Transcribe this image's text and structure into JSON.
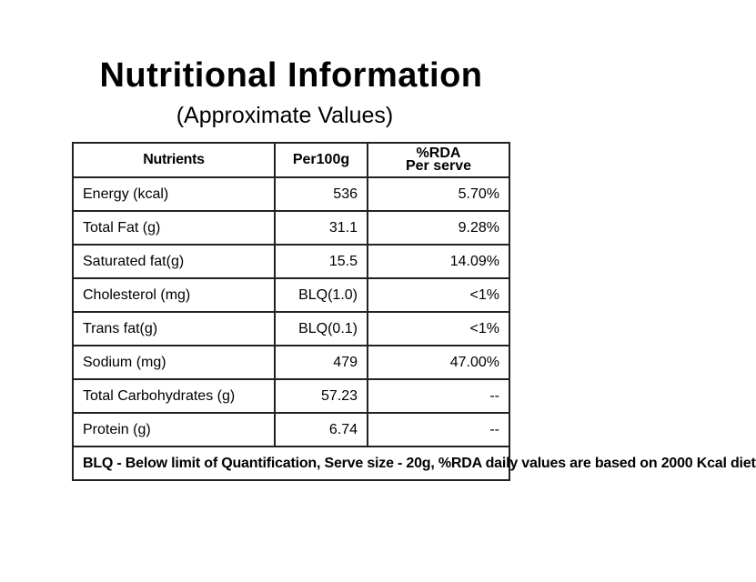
{
  "title": "Nutritional Information",
  "subtitle": "(Approximate Values)",
  "table": {
    "headers": {
      "nutrients": "Nutrients",
      "per100g": "Per100g",
      "rda_line1": "%RDA",
      "rda_line2": "Per serve"
    },
    "rows": [
      {
        "nutrient": "Energy (kcal)",
        "per100g": "536",
        "rda": "5.70%"
      },
      {
        "nutrient": "Total Fat (g)",
        "per100g": "31.1",
        "rda": "9.28%"
      },
      {
        "nutrient": "Saturated fat(g)",
        "per100g": "15.5",
        "rda": "14.09%"
      },
      {
        "nutrient": "Cholesterol (mg)",
        "per100g": "BLQ(1.0)",
        "rda": "<1%"
      },
      {
        "nutrient": "Trans fat(g)",
        "per100g": "BLQ(0.1)",
        "rda": "<1%"
      },
      {
        "nutrient": "Sodium (mg)",
        "per100g": "479",
        "rda": "47.00%"
      },
      {
        "nutrient": "Total Carbohydrates (g)",
        "per100g": "57.23",
        "rda": "--"
      },
      {
        "nutrient": "Protein (g)",
        "per100g": "6.74",
        "rda": "--"
      }
    ],
    "footnote": "BLQ - Below limit of Quantification, Serve size - 20g, %RDA daily values are based on 2000 Kcal diet"
  }
}
